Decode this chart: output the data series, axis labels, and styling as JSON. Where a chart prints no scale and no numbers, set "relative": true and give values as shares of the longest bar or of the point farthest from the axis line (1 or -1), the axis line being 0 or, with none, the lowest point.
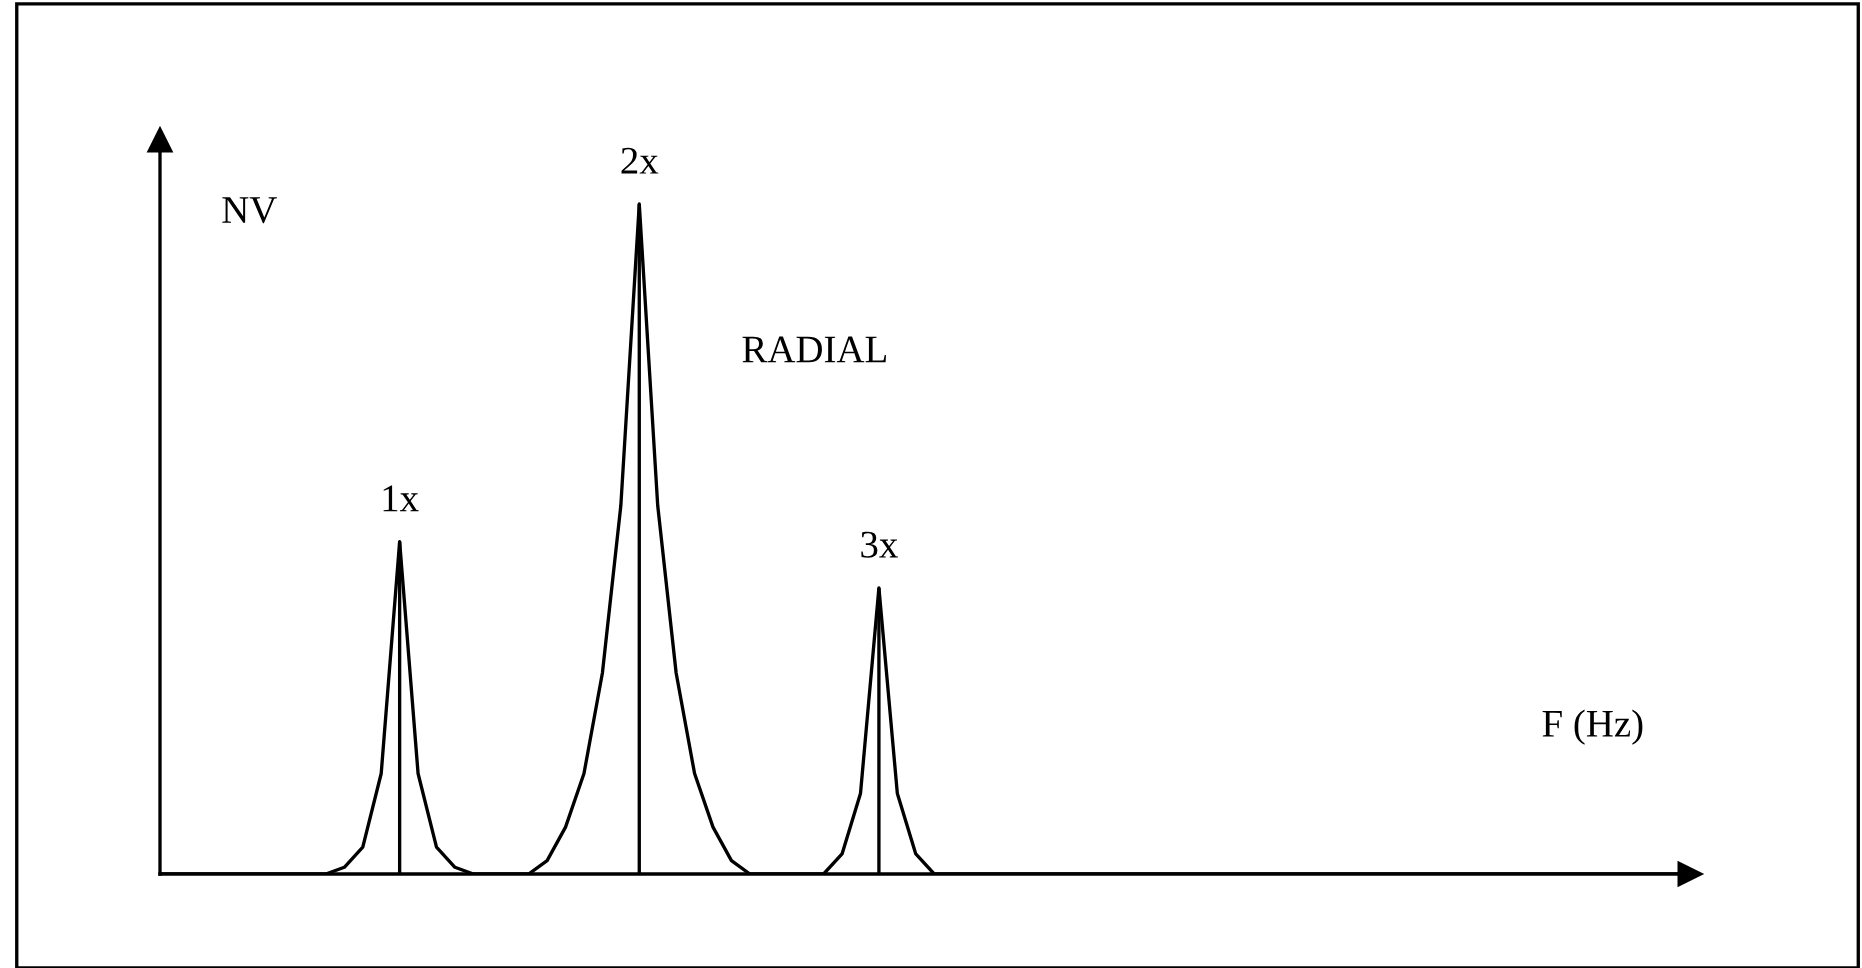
{
  "chart_data": {
    "type": "line",
    "title": "RADIAL",
    "xlabel": "F (Hz)",
    "ylabel": "NV",
    "relative": true,
    "categories": [
      null,
      null,
      null,
      null,
      null,
      null,
      null,
      null,
      null,
      null,
      null,
      null,
      null,
      null,
      null,
      null,
      null,
      null,
      null,
      null,
      null,
      null,
      null,
      null,
      null,
      null,
      null,
      null,
      null,
      null,
      null,
      null,
      null,
      null,
      null,
      null,
      null,
      null,
      null,
      null,
      null,
      null,
      null,
      null,
      null,
      null,
      null,
      null,
      null,
      null,
      null,
      null,
      null,
      null,
      null,
      null,
      null,
      null,
      null,
      null,
      null,
      null,
      null,
      null,
      null,
      null,
      null,
      null,
      null,
      null,
      null,
      null,
      null,
      null,
      null,
      null,
      null,
      null,
      null,
      null,
      null,
      null,
      null,
      null
    ],
    "series": [
      {
        "color": "#000000",
        "values": [
          0,
          0,
          0,
          0,
          0,
          0,
          0,
          0,
          0,
          0,
          0.01,
          0.04,
          0.15,
          0.496,
          0.15,
          0.04,
          0.01,
          0,
          0,
          0,
          0,
          0.02,
          0.07,
          0.15,
          0.3,
          0.55,
          1,
          0.55,
          0.3,
          0.15,
          0.07,
          0.02,
          0,
          0,
          0,
          0,
          0,
          0.03,
          0.12,
          0.427,
          0.12,
          0.03,
          0,
          0,
          0,
          0,
          0,
          0,
          0,
          0,
          0,
          0,
          0,
          0,
          0,
          0,
          0,
          0,
          0,
          0,
          0,
          0,
          0,
          0,
          0,
          0,
          0,
          0,
          0,
          0,
          0,
          0,
          0,
          0,
          0,
          0,
          0,
          0,
          0,
          0,
          0,
          0,
          0,
          0
        ]
      }
    ],
    "annotations": [
      "1x",
      "2x",
      "3x"
    ],
    "marker": "none",
    "line_style": "solid"
  }
}
